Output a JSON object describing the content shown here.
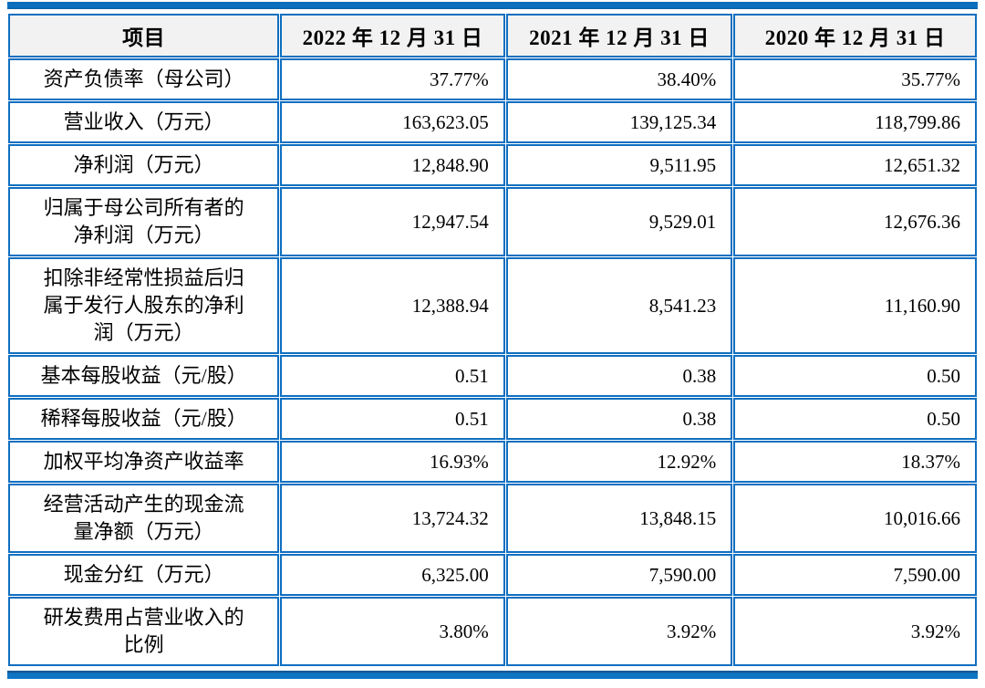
{
  "colors": {
    "border_blue": "#0f6fc0",
    "rule_blue": "#0b70c0",
    "rule_dark_blue": "#155a97",
    "header_bg": "#f2f2f2",
    "text": "#000000"
  },
  "table": {
    "columns": [
      "项目",
      "2022 年 12 月 31 日",
      "2021 年 12 月 31 日",
      "2020 年 12 月 31 日"
    ],
    "rows": [
      {
        "label": "资产负债率（母公司）",
        "values": [
          "37.77%",
          "38.40%",
          "35.77%"
        ]
      },
      {
        "label": "营业收入（万元）",
        "values": [
          "163,623.05",
          "139,125.34",
          "118,799.86"
        ]
      },
      {
        "label": "净利润（万元）",
        "values": [
          "12,848.90",
          "9,511.95",
          "12,651.32"
        ]
      },
      {
        "label": "归属于母公司所有者的\n净利润（万元）",
        "values": [
          "12,947.54",
          "9,529.01",
          "12,676.36"
        ]
      },
      {
        "label": "扣除非经常性损益后归\n属于发行人股东的净利\n润（万元）",
        "values": [
          "12,388.94",
          "8,541.23",
          "11,160.90"
        ]
      },
      {
        "label": "基本每股收益（元/股）",
        "values": [
          "0.51",
          "0.38",
          "0.50"
        ]
      },
      {
        "label": "稀释每股收益（元/股）",
        "values": [
          "0.51",
          "0.38",
          "0.50"
        ]
      },
      {
        "label": "加权平均净资产收益率",
        "values": [
          "16.93%",
          "12.92%",
          "18.37%"
        ]
      },
      {
        "label": "经营活动产生的现金流\n量净额（万元）",
        "values": [
          "13,724.32",
          "13,848.15",
          "10,016.66"
        ]
      },
      {
        "label": "现金分红（万元）",
        "values": [
          "6,325.00",
          "7,590.00",
          "7,590.00"
        ]
      },
      {
        "label": "研发费用占营业收入的\n比例",
        "values": [
          "3.80%",
          "3.92%",
          "3.92%"
        ]
      }
    ]
  }
}
